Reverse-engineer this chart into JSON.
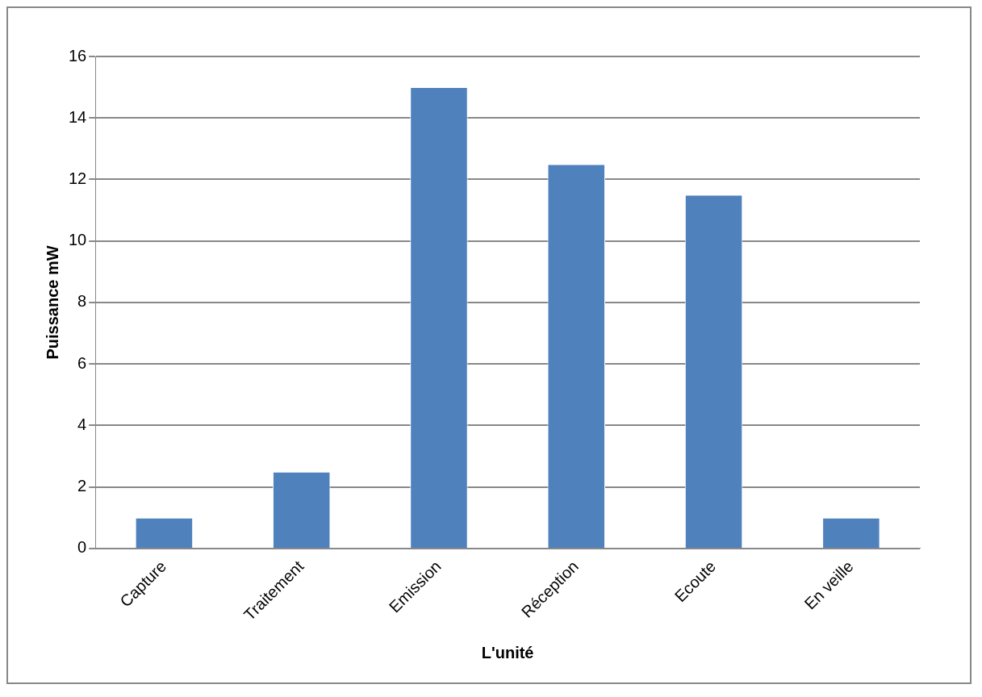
{
  "chart_data": {
    "type": "bar",
    "xlabel": "L'unité",
    "ylabel": "Puissance mW",
    "categories": [
      "Capture",
      "Traitement",
      "Emission",
      "Réception",
      "Ecoute",
      "En veille"
    ],
    "values": [
      1,
      2.5,
      15,
      12.5,
      11.5,
      1
    ],
    "color": "#4f81bd",
    "ylim": [
      0,
      16
    ],
    "yticks": [
      0,
      2,
      4,
      6,
      8,
      10,
      12,
      14,
      16
    ],
    "grid": "y",
    "legend": false
  }
}
